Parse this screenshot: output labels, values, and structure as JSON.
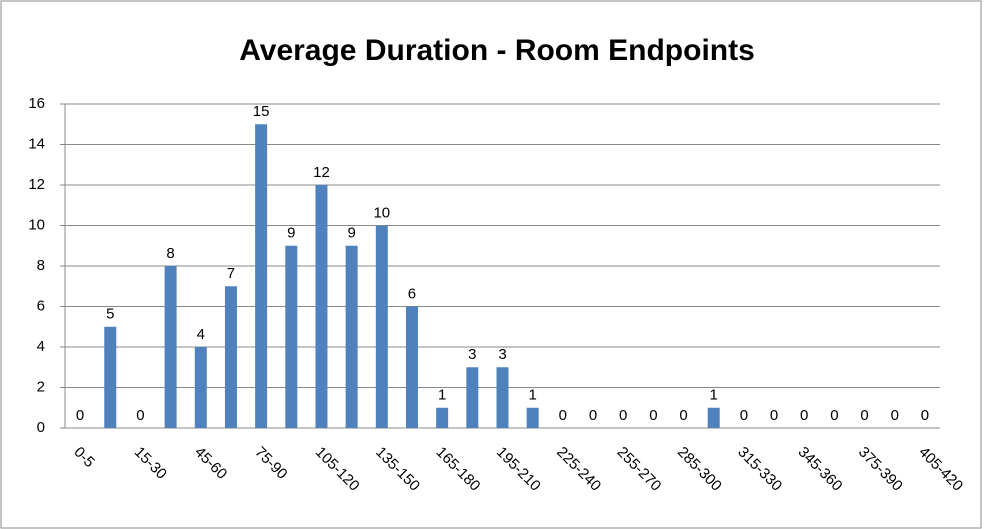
{
  "chart_data": {
    "type": "bar",
    "title": "Average Duration - Room Endpoints",
    "categories": [
      "0-5",
      null,
      "15-30",
      null,
      "45-60",
      null,
      "75-90",
      null,
      "105-120",
      null,
      "135-150",
      null,
      "165-180",
      null,
      "195-210",
      null,
      "225-240",
      null,
      "255-270",
      null,
      "285-300",
      null,
      "315-330",
      null,
      "345-360",
      null,
      "375-390",
      null,
      "405-420"
    ],
    "values": [
      0,
      5,
      0,
      8,
      4,
      7,
      15,
      9,
      12,
      9,
      10,
      6,
      1,
      3,
      3,
      1,
      0,
      0,
      0,
      0,
      0,
      1,
      0,
      0,
      0,
      0,
      0,
      0,
      0
    ],
    "color": "#4f81bd",
    "ylim": [
      0,
      16
    ],
    "yticks": [
      0,
      2,
      4,
      6,
      8,
      10,
      12,
      14,
      16
    ],
    "grid": true
  }
}
